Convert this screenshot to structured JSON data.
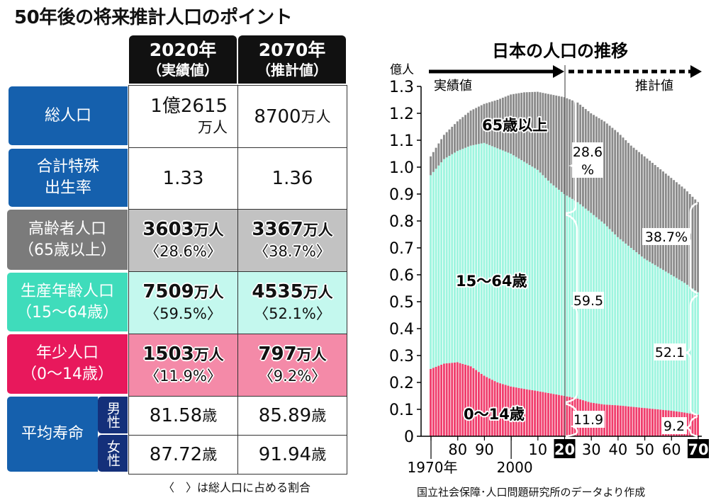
{
  "title": "50年後の将来推計人口のポイント",
  "table": {
    "columns": [
      {
        "year": "2020年",
        "sub": "（実績値）"
      },
      {
        "year": "2070年",
        "sub": "（推計値）"
      }
    ],
    "rows": [
      {
        "label": "総人口",
        "cells": [
          {
            "value": "1億2615",
            "unit": "万人"
          },
          {
            "value": "8700",
            "unit": "万人"
          }
        ]
      },
      {
        "label": "合計特殊出生率",
        "cells": [
          {
            "value": "1.33"
          },
          {
            "value": "1.36"
          }
        ]
      },
      {
        "label": "高齢者人口",
        "sublabel": "（65歳以上）",
        "cells": [
          {
            "value": "3603",
            "unit": "万人",
            "pct": "〈28.6%〉"
          },
          {
            "value": "3367",
            "unit": "万人",
            "pct": "〈38.7%〉"
          }
        ]
      },
      {
        "label": "生産年齢人口",
        "sublabel": "（15〜64歳）",
        "cells": [
          {
            "value": "7509",
            "unit": "万人",
            "pct": "〈59.5%〉"
          },
          {
            "value": "4535",
            "unit": "万人",
            "pct": "〈52.1%〉"
          }
        ]
      },
      {
        "label": "年少人口",
        "sublabel": "（0〜14歳）",
        "cells": [
          {
            "value": "1503",
            "unit": "万人",
            "pct": "〈11.9%〉"
          },
          {
            "value": "797",
            "unit": "万人",
            "pct": "〈9.2%〉"
          }
        ]
      }
    ],
    "life": {
      "label": "平均寿命",
      "male": {
        "label": "男性",
        "cells": [
          {
            "value": "81.58",
            "unit": "歳"
          },
          {
            "value": "85.89",
            "unit": "歳"
          }
        ]
      },
      "female": {
        "label": "女性",
        "cells": [
          {
            "value": "87.72",
            "unit": "歳"
          },
          {
            "value": "91.94",
            "unit": "歳"
          }
        ]
      }
    },
    "note": "〈　〉は総人口に占める割合",
    "colors": {
      "blue": "#1560ad",
      "gray_label": "#7b7b7b",
      "gray_cell": "#c2c2c2",
      "teal_label": "#3fdcbb",
      "teal_cell": "#c4f8ee",
      "pink_label": "#e8185c",
      "pink_cell": "#f48aa8",
      "navy": "#14307a"
    }
  },
  "chart_data": {
    "type": "area",
    "stacked": true,
    "title": "日本の人口の推移",
    "ylabel": "億人",
    "ylim": [
      0,
      1.3
    ],
    "yticks": [
      "0",
      "0.1",
      "0.2",
      "0.3",
      "0.4",
      "0.5",
      "0.6",
      "0.7",
      "0.8",
      "0.9",
      "1.0",
      "1.1",
      "1.2",
      "1.3"
    ],
    "xlim": [
      1970,
      2070
    ],
    "xtick_labels": [
      {
        "x": 1970,
        "label": "1970年"
      },
      {
        "x": 1980,
        "label": "80"
      },
      {
        "x": 1990,
        "label": "90"
      },
      {
        "x": 2000,
        "label": "2000"
      },
      {
        "x": 2010,
        "label": "10"
      },
      {
        "x": 2020,
        "label": "20",
        "highlight": true
      },
      {
        "x": 2030,
        "label": "30"
      },
      {
        "x": 2040,
        "label": "40"
      },
      {
        "x": 2050,
        "label": "50"
      },
      {
        "x": 2060,
        "label": "60"
      },
      {
        "x": 2070,
        "label": "70",
        "highlight": true
      }
    ],
    "x": [
      1970,
      1975,
      1980,
      1985,
      1990,
      1995,
      2000,
      2005,
      2010,
      2015,
      2020,
      2025,
      2030,
      2035,
      2040,
      2045,
      2050,
      2055,
      2060,
      2065,
      2070
    ],
    "series": [
      {
        "name": "0〜14歳",
        "color": "#f03d6c",
        "values": [
          0.25,
          0.27,
          0.275,
          0.26,
          0.225,
          0.2,
          0.185,
          0.176,
          0.168,
          0.159,
          0.15,
          0.14,
          0.125,
          0.118,
          0.115,
          0.11,
          0.105,
          0.1,
          0.095,
          0.088,
          0.08
        ]
      },
      {
        "name": "15〜64歳",
        "color": "#9ef5df",
        "values": [
          0.72,
          0.76,
          0.785,
          0.82,
          0.865,
          0.87,
          0.865,
          0.844,
          0.822,
          0.781,
          0.75,
          0.73,
          0.705,
          0.672,
          0.625,
          0.59,
          0.555,
          0.53,
          0.505,
          0.482,
          0.455
        ]
      },
      {
        "name": "65歳以上",
        "color": "#8a8a8a",
        "values": [
          0.07,
          0.09,
          0.11,
          0.13,
          0.145,
          0.18,
          0.22,
          0.258,
          0.29,
          0.33,
          0.36,
          0.37,
          0.37,
          0.38,
          0.39,
          0.38,
          0.38,
          0.37,
          0.36,
          0.35,
          0.335
        ]
      }
    ],
    "period_labels": {
      "actual": "実績値",
      "projected": "推計値",
      "split_year": 2020
    },
    "annotations": {
      "y2020": {
        "old": "28.6",
        "old_unit": "%",
        "working": "59.5",
        "young": "11.9"
      },
      "y2070": {
        "old": "38.7%",
        "working": "52.1",
        "young": "9.2"
      }
    },
    "grid": false,
    "source": "国立社会保障･人口問題研究所のデータより作成"
  }
}
